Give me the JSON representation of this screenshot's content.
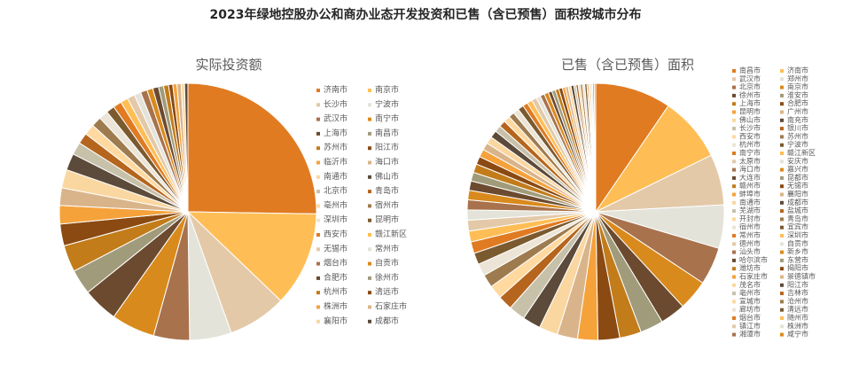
{
  "title": "2023年绿地控股办公和商办业态开发投资和已售（含已预售）面积按城市分布",
  "palette": [
    "#E07B22",
    "#FFBE55",
    "#E3C9A8",
    "#E3E3DA",
    "#A8724D",
    "#D98A1C",
    "#6B4A2F",
    "#A09B7A",
    "#C27C1A",
    "#8A4A12",
    "#F5A23B",
    "#D9B48A",
    "#FAD7A0",
    "#5C4A3A",
    "#C8C1AA",
    "#B5651D",
    "#FFD9A0",
    "#9E7B4F",
    "#ECE4D6",
    "#7A5A2E"
  ],
  "chart_data": [
    {
      "type": "pie",
      "title": "实际投资额",
      "labels": [
        "济南市",
        "南京市",
        "长沙市",
        "宁波市",
        "武汉市",
        "南宁市",
        "上海市",
        "南昌市",
        "苏州市",
        "阳江市",
        "临沂市",
        "海口市",
        "南通市",
        "佛山市",
        "北京市",
        "青岛市",
        "亳州市",
        "宿州市",
        "深圳市",
        "昆明市",
        "西安市",
        "赣江新区",
        "无锡市",
        "常州市",
        "烟台市",
        "自贡市",
        "合肥市",
        "徐州市",
        "杭州市",
        "清远市",
        "株洲市",
        "石家庄市",
        "襄阳市",
        "成都市"
      ],
      "values": [
        24.0,
        11.3,
        7.0,
        5.0,
        4.3,
        5.2,
        4.2,
        3.0,
        3.2,
        2.6,
        2.2,
        2.1,
        2.2,
        2.0,
        1.5,
        1.3,
        1.3,
        1.2,
        1.1,
        1.0,
        1.0,
        0.9,
        0.9,
        0.8,
        0.8,
        0.7,
        0.7,
        0.6,
        0.6,
        0.5,
        0.5,
        0.5,
        0.4,
        0.4
      ]
    },
    {
      "type": "pie",
      "title": "已售（含已预售）面积",
      "labels": [
        "南昌市",
        "济南市",
        "武汉市",
        "郑州市",
        "北京市",
        "南京市",
        "徐州市",
        "淮安市",
        "上海市",
        "合肥市",
        "昆明市",
        "广州市",
        "佛山市",
        "南充市",
        "长沙市",
        "银川市",
        "西安市",
        "苏州市",
        "杭州市",
        "宁波市",
        "南宁市",
        "赣江新区",
        "太原市",
        "安庆市",
        "海口市",
        "嘉兴市",
        "大连市",
        "昆都市",
        "赣州市",
        "无锡市",
        "蚌埠市",
        "襄阳市",
        "南通市",
        "成都市",
        "芜湖市",
        "盐城市",
        "开封市",
        "青岛市",
        "宿州市",
        "宜宾市",
        "常州市",
        "深圳市",
        "德州市",
        "自贡市",
        "汕头市",
        "新乡市",
        "哈尔滨市",
        "东营市",
        "潍坊市",
        "揭阳市",
        "石家庄市",
        "景德镇市",
        "茂名市",
        "阳江市",
        "亳州市",
        "吉林市",
        "宣城市",
        "沧州市",
        "廊坊市",
        "清远市",
        "烟台市",
        "随州市",
        "镇江市",
        "株洲市",
        "湘潭市",
        "咸宁市"
      ],
      "values": [
        10.5,
        9.0,
        7.0,
        6.0,
        5.2,
        4.2,
        3.5,
        3.2,
        3.0,
        3.0,
        2.8,
        2.8,
        2.6,
        2.5,
        2.3,
        2.0,
        1.9,
        1.8,
        1.7,
        1.6,
        1.6,
        1.5,
        1.5,
        1.4,
        1.4,
        1.3,
        1.3,
        1.2,
        1.2,
        1.1,
        1.1,
        1.0,
        1.0,
        1.0,
        0.9,
        0.9,
        0.9,
        0.8,
        0.8,
        0.8,
        0.7,
        0.7,
        0.7,
        0.6,
        0.6,
        0.6,
        0.5,
        0.5,
        0.5,
        0.5,
        0.4,
        0.4,
        0.4,
        0.4,
        0.3,
        0.3,
        0.3,
        0.3,
        0.3,
        0.3,
        0.2,
        0.2,
        0.2,
        0.2,
        0.2,
        0.2
      ]
    }
  ]
}
